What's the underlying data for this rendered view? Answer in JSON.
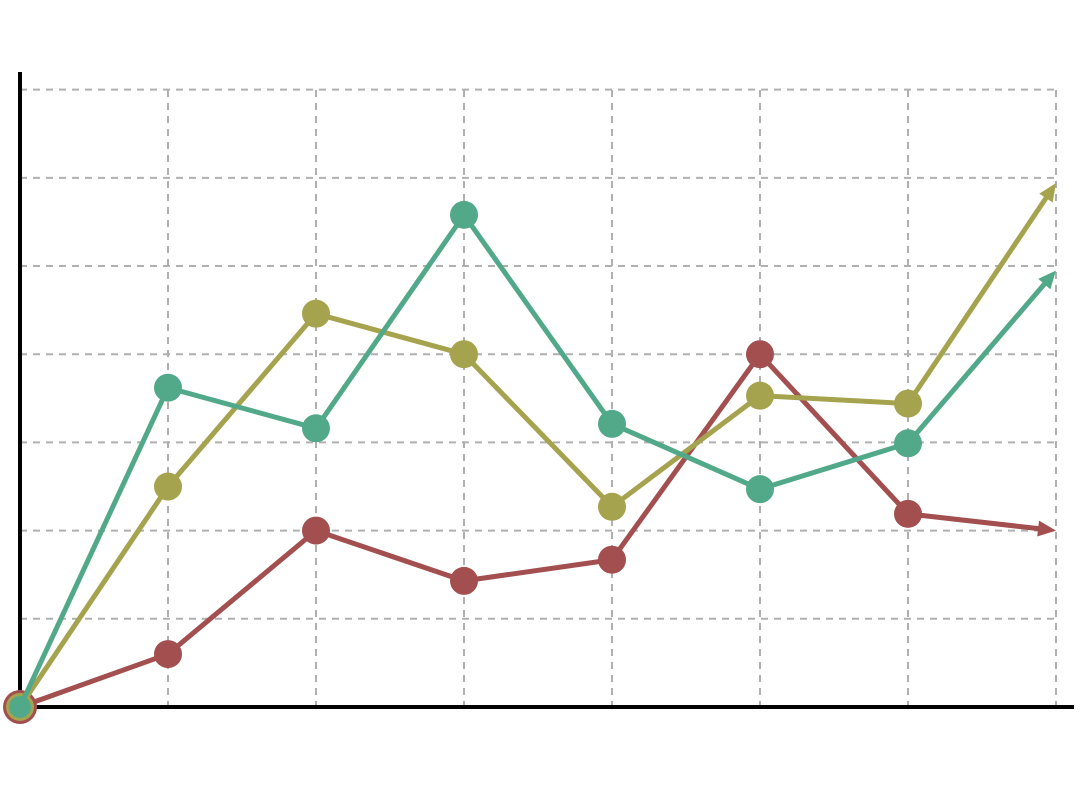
{
  "chart_data": {
    "type": "line",
    "x": [
      0,
      1,
      2,
      3,
      4,
      5,
      6,
      7
    ],
    "series": [
      {
        "color": "#a34f4f",
        "values": [
          0,
          0.6,
          2.0,
          1.43,
          1.67,
          4.0,
          2.19,
          2.0
        ]
      },
      {
        "color": "#a5a34e",
        "values": [
          0,
          2.5,
          4.46,
          4.0,
          2.27,
          3.53,
          3.44,
          5.94
        ]
      },
      {
        "color": "#52a98a",
        "values": [
          0,
          3.62,
          3.16,
          5.58,
          3.21,
          2.47,
          2.99,
          4.95
        ]
      }
    ],
    "xlim": [
      0,
      7
    ],
    "ylim": [
      0,
      7.2
    ],
    "xticks": [
      1,
      2,
      3,
      4,
      5,
      6,
      7
    ],
    "yticks": [
      1,
      2,
      3,
      4,
      5,
      6,
      7
    ],
    "grid": true,
    "end_arrows": true
  }
}
